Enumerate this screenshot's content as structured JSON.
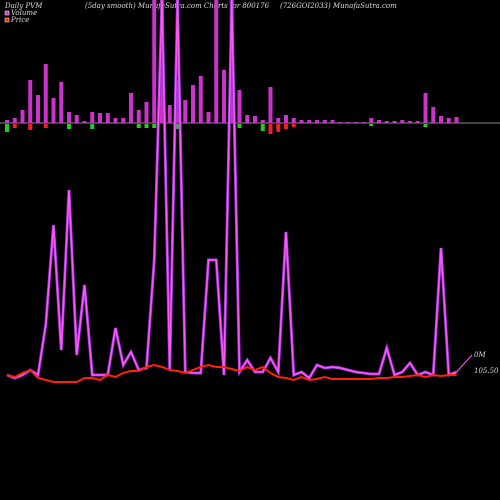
{
  "chart_data": {
    "type": "pvm",
    "title_left": "Daily PVM",
    "title_center": "(5day smooth) MunafaSutra.com Charts for 800176",
    "title_right": "(726GOI2033) MunafaSutra.com",
    "volume_label": "0M",
    "price_label": "105.50",
    "bar_ylim": [
      0,
      123
    ],
    "line_ylim": [
      0,
      385
    ],
    "series": [
      {
        "name": "Volume",
        "color": "#cc33cc",
        "values": [
          3,
          5,
          13,
          43,
          28,
          59,
          25,
          41,
          11,
          8,
          2,
          11,
          10,
          10,
          5,
          5,
          30,
          13,
          21,
          123,
          123,
          18,
          43,
          23,
          38,
          47,
          11,
          123,
          53,
          123,
          33,
          8,
          7,
          3,
          36,
          5,
          8,
          5,
          3,
          3,
          3,
          3,
          3,
          1,
          1,
          1,
          1,
          5,
          3,
          2,
          2,
          3,
          2,
          2,
          30,
          16,
          7,
          5,
          6
        ],
        "line_color": "#ff55ff",
        "line_values": [
          10,
          7,
          10,
          15,
          10,
          60,
          160,
          35,
          195,
          30,
          100,
          10,
          10,
          10,
          57,
          20,
          33,
          15,
          17,
          125,
          385,
          15,
          385,
          13,
          12,
          12,
          125,
          125,
          10,
          385,
          13,
          25,
          13,
          13,
          27,
          13,
          153,
          10,
          13,
          7,
          20,
          17,
          18,
          17,
          15,
          13,
          12,
          11,
          11,
          37,
          10,
          13,
          22,
          10,
          13,
          10,
          137,
          10,
          13
        ]
      },
      {
        "name": "Price",
        "color": "#ff2200",
        "line_values": [
          10,
          8,
          12,
          15,
          7,
          5,
          3,
          3,
          3,
          3,
          7,
          7,
          5,
          10,
          8,
          12,
          14,
          14,
          18,
          20,
          18,
          15,
          14,
          12,
          15,
          18,
          20,
          18,
          18,
          16,
          14,
          18,
          15,
          18,
          12,
          8,
          7,
          5,
          8,
          5,
          6,
          8,
          6,
          6,
          6,
          6,
          6,
          6,
          7,
          7,
          8,
          8,
          9,
          10,
          8,
          10,
          9,
          10,
          10
        ]
      }
    ],
    "change_bars": {
      "up_color": "#22cc22",
      "down_color": "#ee2222",
      "values": [
        8,
        -4,
        null,
        -6,
        null,
        -4,
        null,
        null,
        5,
        null,
        null,
        5,
        null,
        null,
        null,
        null,
        null,
        4,
        4,
        4,
        null,
        null,
        5,
        null,
        null,
        null,
        null,
        null,
        null,
        null,
        4,
        null,
        null,
        7,
        -10,
        -8,
        -5,
        -3,
        null,
        null,
        null,
        null,
        null,
        null,
        null,
        null,
        null,
        2,
        null,
        null,
        null,
        null,
        null,
        null,
        3,
        null,
        null,
        null,
        null
      ]
    }
  }
}
